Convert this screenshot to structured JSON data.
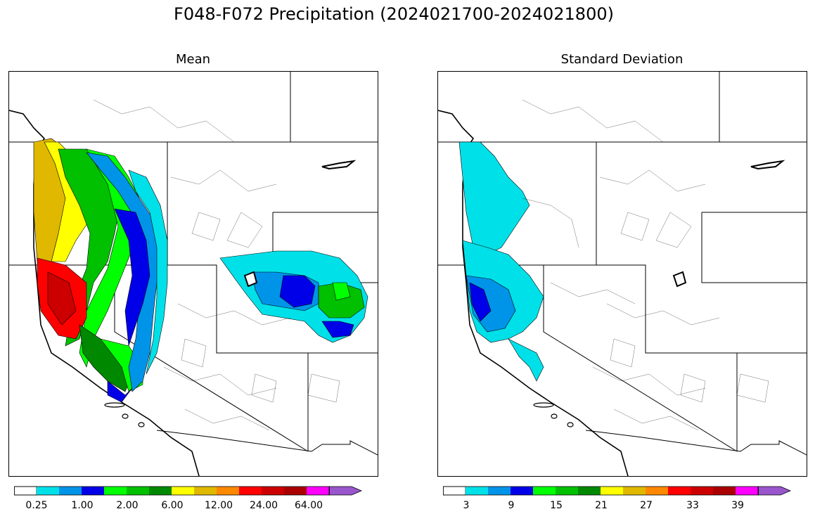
{
  "title": "F048-F072 Precipitation (2024021700-2024021800)",
  "panels": [
    {
      "title": "Mean",
      "colorbar": {
        "colors": [
          "#ffffff",
          "#00e0e8",
          "#0094e8",
          "#0000e8",
          "#00ff00",
          "#00c000",
          "#008800",
          "#ffff00",
          "#e0b800",
          "#ff8800",
          "#ff0000",
          "#cc0000",
          "#aa0000",
          "#ff00ff",
          "#9955cc"
        ],
        "tick_labels": [
          "0.25",
          "1.00",
          "2.00",
          "6.00",
          "12.00",
          "24.00",
          "64.00"
        ],
        "extend": "max"
      }
    },
    {
      "title": "Standard Deviation",
      "colorbar": {
        "colors": [
          "#ffffff",
          "#00e0e8",
          "#0094e8",
          "#0000e8",
          "#00ff00",
          "#00c000",
          "#008800",
          "#ffff00",
          "#e0b800",
          "#ff8800",
          "#ff0000",
          "#cc0000",
          "#aa0000",
          "#ff00ff",
          "#9955cc"
        ],
        "tick_labels": [
          "3",
          "9",
          "15",
          "21",
          "27",
          "33",
          "39"
        ],
        "extend": "max"
      }
    }
  ]
}
